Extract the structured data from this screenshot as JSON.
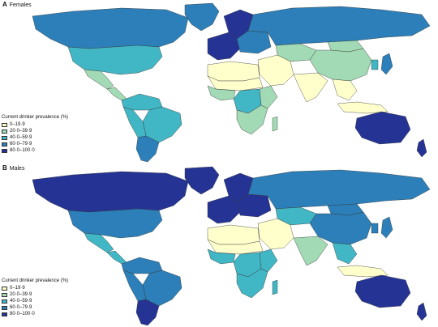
{
  "figure": {
    "panels": [
      {
        "letter": "A",
        "title": "Females",
        "legend_title": "Current drinker prevalence (%)",
        "legend": [
          {
            "label": "0–19·9",
            "color": "#ffffcc"
          },
          {
            "label": "20·0–39·9",
            "color": "#a1dab4"
          },
          {
            "label": "40·0–59·9",
            "color": "#41b6c4"
          },
          {
            "label": "60·0–79·9",
            "color": "#2c7fb8"
          },
          {
            "label": "80·0–100·0",
            "color": "#253494"
          }
        ]
      },
      {
        "letter": "B",
        "title": "Males",
        "legend_title": "Current drinker prevalence (%)",
        "legend": [
          {
            "label": "0–19·9",
            "color": "#ffffcc"
          },
          {
            "label": "20·0–39·9",
            "color": "#a1dab4"
          },
          {
            "label": "40·0–59·9",
            "color": "#41b6c4"
          },
          {
            "label": "60·0–79·9",
            "color": "#2c7fb8"
          },
          {
            "label": "80·0–100·0",
            "color": "#253494"
          }
        ]
      }
    ]
  },
  "region_classes": {
    "females": {
      "canada": 3,
      "usa": 2,
      "greenland": 3,
      "mexico": 1,
      "central_america": 1,
      "south_america_north": 2,
      "brazil": 2,
      "southern_cone": 3,
      "andes": 2,
      "western_europe": 4,
      "scandinavia": 4,
      "eastern_europe": 3,
      "russia": 3,
      "north_africa": 0,
      "sahel": 0,
      "west_africa": 1,
      "central_africa": 2,
      "east_africa": 1,
      "southern_africa": 1,
      "madagascar": 1,
      "middle_east": 0,
      "central_asia": 1,
      "south_asia": 0,
      "china": 1,
      "mongolia": 1,
      "japan": 3,
      "korea": 2,
      "southeast_asia": 0,
      "indonesia": 0,
      "australia": 4,
      "new_zealand": 4
    },
    "males": {
      "canada": 4,
      "usa": 3,
      "greenland": 4,
      "mexico": 2,
      "central_america": 2,
      "south_america_north": 3,
      "brazil": 3,
      "southern_cone": 4,
      "andes": 3,
      "western_europe": 4,
      "scandinavia": 4,
      "eastern_europe": 4,
      "russia": 3,
      "north_africa": 0,
      "sahel": 0,
      "west_africa": 2,
      "central_africa": 2,
      "east_africa": 2,
      "southern_africa": 2,
      "madagascar": 2,
      "middle_east": 0,
      "central_asia": 2,
      "south_asia": 1,
      "china": 3,
      "mongolia": 3,
      "japan": 3,
      "korea": 3,
      "southeast_asia": 2,
      "indonesia": 0,
      "australia": 4,
      "new_zealand": 4
    }
  }
}
